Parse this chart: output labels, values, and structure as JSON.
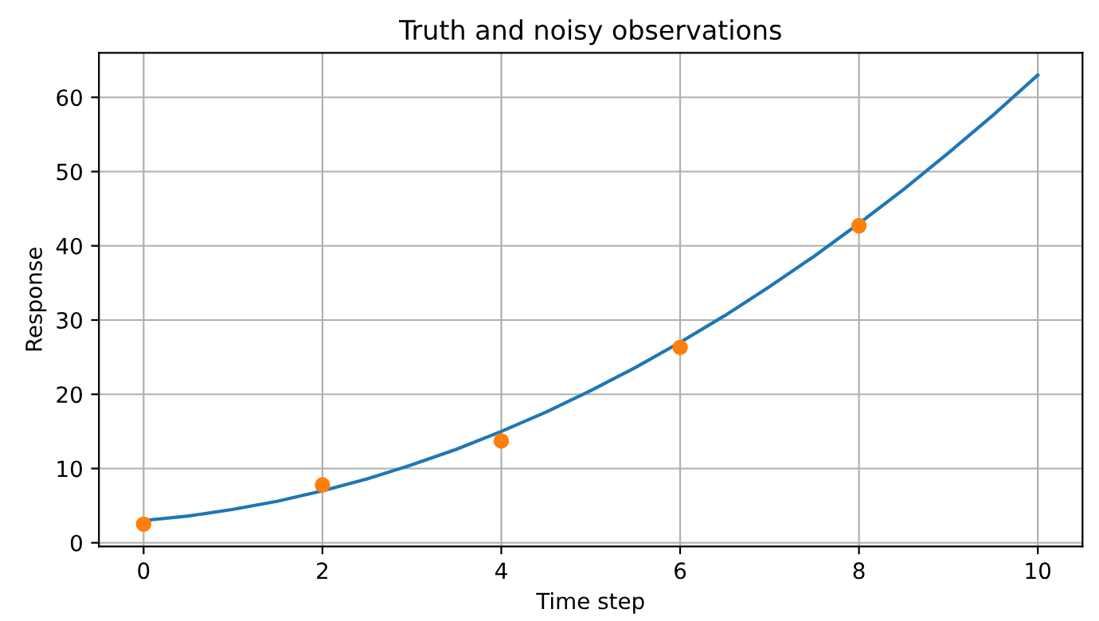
{
  "chart_data": {
    "type": "line",
    "title": "Truth and noisy observations",
    "xlabel": "Time step",
    "ylabel": "Response",
    "series": [
      {
        "color": "#1f77b4",
        "marker": "none",
        "x": [
          0,
          0.5,
          1,
          1.5,
          2,
          2.5,
          3,
          3.5,
          4,
          4.5,
          5,
          5.5,
          6,
          6.5,
          7,
          7.5,
          8,
          8.5,
          9,
          9.5,
          10
        ],
        "values": [
          3,
          3.6,
          4.5,
          5.6,
          7,
          8.6,
          10.5,
          12.6,
          15,
          17.6,
          20.5,
          23.6,
          27,
          30.6,
          34.5,
          38.6,
          43,
          47.6,
          52.5,
          57.6,
          63
        ]
      },
      {
        "type": "scatter",
        "color": "#ff7f0e",
        "marker": "circle",
        "x": [
          0,
          2,
          4,
          6,
          8
        ],
        "values": [
          2.5,
          7.8,
          13.7,
          26.3,
          42.7
        ]
      }
    ],
    "xlim": [
      -0.5,
      10.5
    ],
    "xticks": [
      0,
      2,
      4,
      6,
      8,
      10
    ],
    "ylim": [
      -0.5,
      66
    ],
    "yticks": [
      0,
      10,
      20,
      30,
      40,
      50,
      60
    ],
    "grid": true
  }
}
